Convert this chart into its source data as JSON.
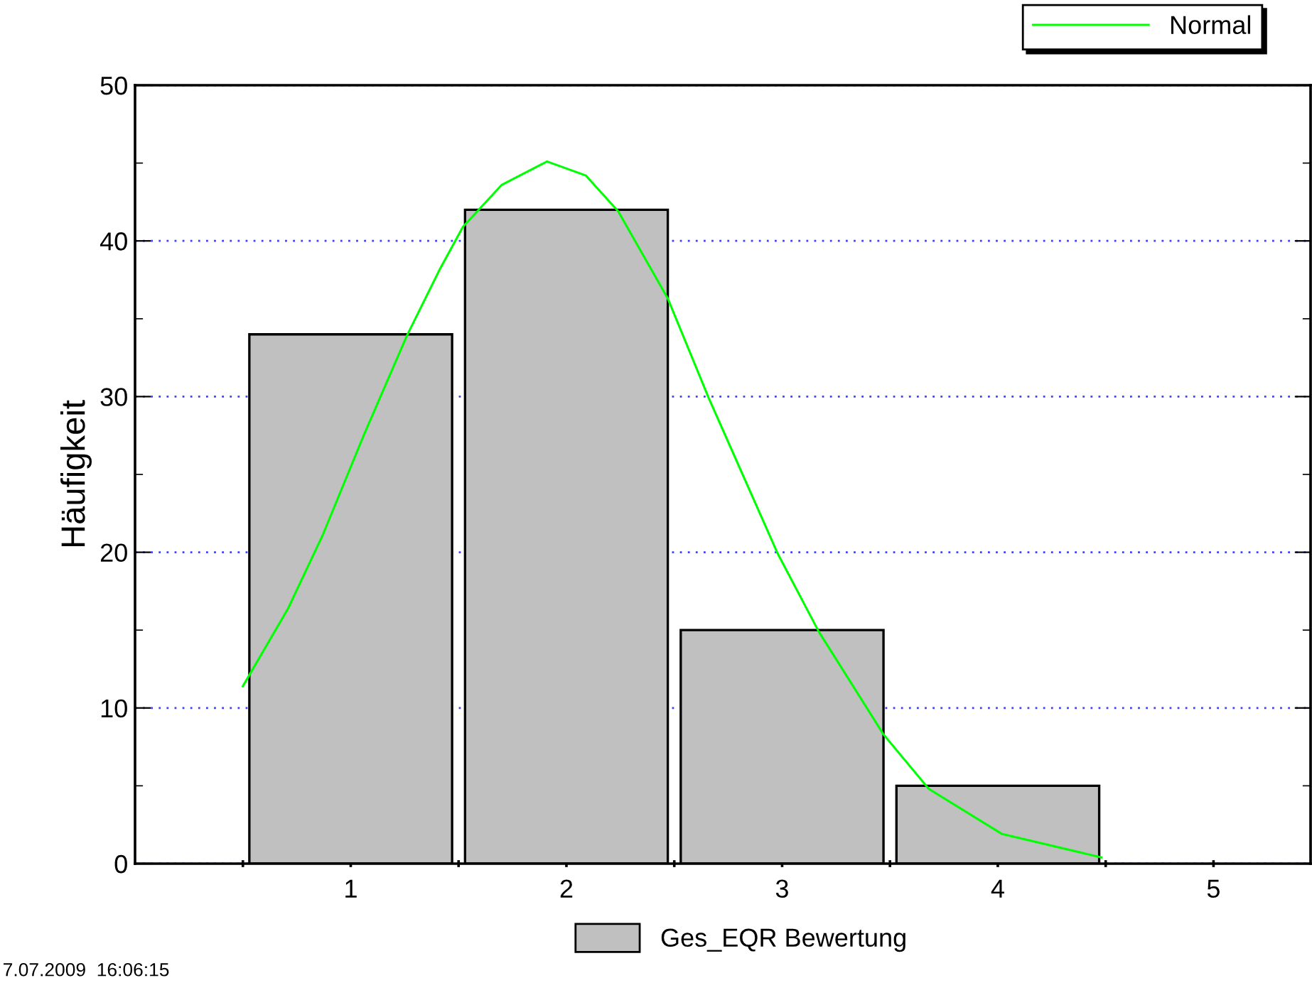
{
  "chart_data": {
    "type": "histogram",
    "ylabel": "Häufigkeit",
    "bins": [
      0.5,
      1.5,
      2.5,
      3.5,
      4.5
    ],
    "series": [
      {
        "name": "Ges_EQR Bewertung",
        "color": "#c0c0c0",
        "values": [
          34,
          42,
          15,
          5
        ]
      },
      {
        "type": "line",
        "name": "Normal",
        "color": "#00ff00",
        "x": [
          0.5,
          0.71,
          0.87,
          1.06,
          1.26,
          1.41,
          1.52,
          1.7,
          1.91,
          2.09,
          2.24,
          2.47,
          2.66,
          2.98,
          3.17,
          3.47,
          3.68,
          4.02,
          4.48
        ],
        "values": [
          11.4,
          16.4,
          21.1,
          27.5,
          33.9,
          38.1,
          40.9,
          43.6,
          45.1,
          44.2,
          41.9,
          36.3,
          29.9,
          19.9,
          14.9,
          8.3,
          4.8,
          1.9,
          0.4
        ]
      }
    ],
    "xlim": [
      0,
      5.45
    ],
    "xticks": [
      {
        "value": 0.5,
        "label": null
      },
      {
        "value": 1,
        "label": "1"
      },
      {
        "value": 1.5,
        "label": null
      },
      {
        "value": 2,
        "label": "2"
      },
      {
        "value": 2.5,
        "label": null
      },
      {
        "value": 3,
        "label": "3"
      },
      {
        "value": 3.5,
        "label": null
      },
      {
        "value": 4,
        "label": "4"
      },
      {
        "value": 4.5,
        "label": null
      },
      {
        "value": 5,
        "label": "5"
      }
    ],
    "ylim": [
      0,
      50
    ],
    "yticks": [
      0,
      10,
      20,
      30,
      40,
      50
    ],
    "grid": "y",
    "legend": "bottom",
    "annotations": [
      "7.07.2009  16:06:15"
    ]
  }
}
